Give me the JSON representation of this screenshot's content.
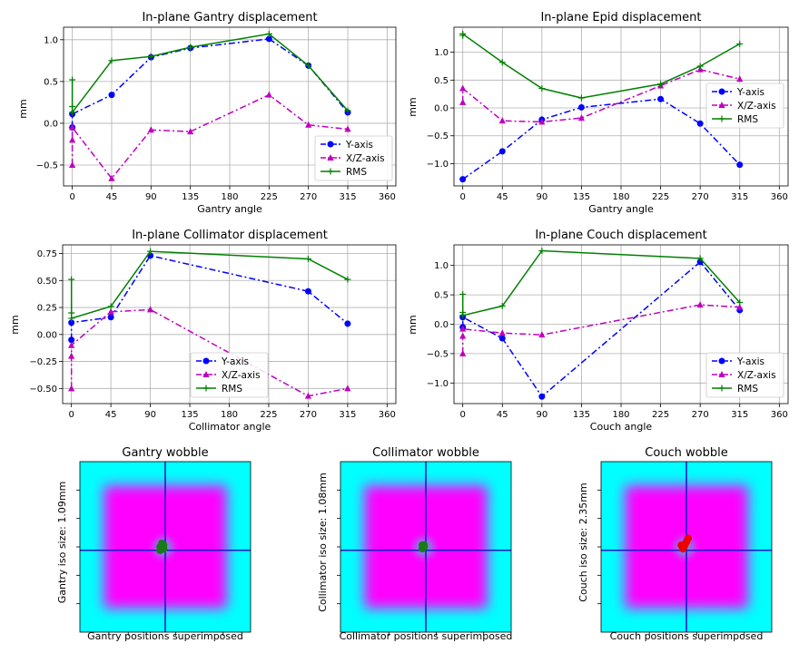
{
  "chart_data": [
    {
      "type": "line",
      "title": "In-plane Gantry displacement",
      "xlabel": "Gantry angle",
      "ylabel": "mm",
      "xlim": [
        -10,
        370
      ],
      "ylim": [
        -0.75,
        1.15
      ],
      "xticks": [
        0,
        45,
        90,
        135,
        180,
        225,
        270,
        315,
        360
      ],
      "yticks": [
        -0.5,
        0.0,
        0.5,
        1.0
      ],
      "ytick_labels": [
        "−0.5",
        "0.0",
        "0.5",
        "1.0"
      ],
      "grid": true,
      "legend_position": "lower-right",
      "series": [
        {
          "name": "Y-axis",
          "color": "#0000ff",
          "style": "dashdot",
          "marker": "circle",
          "x": [
            0,
            0,
            45,
            90,
            135,
            225,
            270,
            315
          ],
          "y": [
            -0.05,
            0.11,
            0.34,
            0.79,
            0.9,
            1.01,
            0.69,
            0.13
          ]
        },
        {
          "name": "X/Z-axis",
          "color": "#bf00bf",
          "style": "dashdot",
          "marker": "triangle",
          "x": [
            0,
            0,
            0,
            45,
            90,
            135,
            225,
            270,
            315
          ],
          "y": [
            -0.5,
            -0.2,
            -0.05,
            -0.66,
            -0.08,
            -0.1,
            0.34,
            -0.02,
            -0.07
          ]
        },
        {
          "name": "RMS",
          "color": "#008000",
          "style": "solid",
          "marker": "plus",
          "x": [
            0,
            0,
            0,
            45,
            90,
            135,
            225,
            270,
            315
          ],
          "y": [
            0.52,
            0.2,
            0.13,
            0.75,
            0.8,
            0.91,
            1.07,
            0.69,
            0.15
          ]
        }
      ]
    },
    {
      "type": "line",
      "title": "In-plane Epid displacement",
      "xlabel": "Gantry angle",
      "ylabel": "mm",
      "xlim": [
        -10,
        370
      ],
      "ylim": [
        -1.4,
        1.45
      ],
      "xticks": [
        0,
        45,
        90,
        135,
        180,
        225,
        270,
        315,
        360
      ],
      "yticks": [
        -1.0,
        -0.5,
        0.0,
        0.5,
        1.0
      ],
      "ytick_labels": [
        "−1.0",
        "−0.5",
        "0.0",
        "0.5",
        "1.0"
      ],
      "grid": true,
      "legend_position": "upper-right",
      "series": [
        {
          "name": "Y-axis",
          "color": "#0000ff",
          "style": "dashdot",
          "marker": "circle",
          "x": [
            0,
            45,
            90,
            135,
            225,
            270,
            315
          ],
          "y": [
            -1.28,
            -0.78,
            -0.21,
            0.01,
            0.16,
            -0.28,
            -1.02
          ]
        },
        {
          "name": "X/Z-axis",
          "color": "#bf00bf",
          "style": "dashdot",
          "marker": "triangle",
          "x": [
            0,
            0,
            45,
            90,
            135,
            225,
            270,
            315
          ],
          "y": [
            0.1,
            0.35,
            -0.23,
            -0.25,
            -0.18,
            0.4,
            0.69,
            0.52
          ]
        },
        {
          "name": "RMS",
          "color": "#008000",
          "style": "solid",
          "marker": "plus",
          "x": [
            0,
            0,
            45,
            90,
            135,
            225,
            270,
            315
          ],
          "y": [
            1.3,
            1.33,
            0.82,
            0.35,
            0.18,
            0.43,
            0.75,
            1.15
          ]
        }
      ]
    },
    {
      "type": "line",
      "title": "In-plane Collimator displacement",
      "xlabel": "Collimator angle",
      "ylabel": "mm",
      "xlim": [
        -10,
        370
      ],
      "ylim": [
        -0.64,
        0.83
      ],
      "xticks": [
        0,
        45,
        90,
        135,
        180,
        225,
        270,
        315,
        360
      ],
      "yticks": [
        -0.5,
        -0.25,
        0.0,
        0.25,
        0.5,
        0.75
      ],
      "ytick_labels": [
        "−0.50",
        "−0.25",
        "0.00",
        "0.25",
        "0.50",
        "0.75"
      ],
      "grid": true,
      "legend_position": "lower-center",
      "series": [
        {
          "name": "Y-axis",
          "color": "#0000ff",
          "style": "dashdot",
          "marker": "circle",
          "x": [
            0,
            0,
            45,
            90,
            270,
            315
          ],
          "y": [
            -0.05,
            0.11,
            0.16,
            0.73,
            0.4,
            0.1
          ]
        },
        {
          "name": "X/Z-axis",
          "color": "#bf00bf",
          "style": "dashdot",
          "marker": "triangle",
          "x": [
            0,
            0,
            0,
            45,
            90,
            270,
            315
          ],
          "y": [
            -0.5,
            -0.2,
            -0.1,
            0.21,
            0.23,
            -0.57,
            -0.5
          ]
        },
        {
          "name": "RMS",
          "color": "#008000",
          "style": "solid",
          "marker": "plus",
          "x": [
            0,
            0,
            0,
            45,
            90,
            270,
            315
          ],
          "y": [
            0.51,
            0.2,
            0.15,
            0.26,
            0.77,
            0.7,
            0.51
          ]
        }
      ]
    },
    {
      "type": "line",
      "title": "In-plane Couch displacement",
      "xlabel": "Couch angle",
      "ylabel": "mm",
      "xlim": [
        -10,
        370
      ],
      "ylim": [
        -1.35,
        1.35
      ],
      "xticks": [
        0,
        45,
        90,
        135,
        180,
        225,
        270,
        315,
        360
      ],
      "yticks": [
        -1.0,
        -0.5,
        0.0,
        0.5,
        1.0
      ],
      "ytick_labels": [
        "−1.0",
        "−0.5",
        "0.0",
        "0.5",
        "1.0"
      ],
      "grid": true,
      "legend_position": "lower-right",
      "series": [
        {
          "name": "Y-axis",
          "color": "#0000ff",
          "style": "dashdot",
          "marker": "circle",
          "x": [
            0,
            0,
            45,
            90,
            270,
            315
          ],
          "y": [
            -0.05,
            0.12,
            -0.24,
            -1.23,
            1.06,
            0.24
          ]
        },
        {
          "name": "X/Z-axis",
          "color": "#bf00bf",
          "style": "dashdot",
          "marker": "triangle",
          "x": [
            0,
            0,
            0,
            45,
            90,
            270,
            315
          ],
          "y": [
            -0.5,
            -0.2,
            -0.08,
            -0.15,
            -0.18,
            0.33,
            0.29
          ]
        },
        {
          "name": "RMS",
          "color": "#008000",
          "style": "solid",
          "marker": "plus",
          "x": [
            0,
            0,
            0,
            45,
            90,
            270,
            315
          ],
          "y": [
            0.51,
            0.2,
            0.15,
            0.31,
            1.25,
            1.12,
            0.37
          ]
        }
      ]
    },
    {
      "type": "heatmap",
      "title": "Gantry wobble",
      "xlabel": "Gantry positions superimposed",
      "ylabel": "Gantry iso size: 1.09mm",
      "crosshair": [
        0.5,
        0.52
      ],
      "spot_color": "#1a7a1a",
      "spots": [
        [
          0.47,
          0.5
        ],
        [
          0.48,
          0.48
        ],
        [
          0.49,
          0.51
        ],
        [
          0.47,
          0.52
        ],
        [
          0.49,
          0.49
        ],
        [
          0.48,
          0.51
        ]
      ]
    },
    {
      "type": "heatmap",
      "title": "Collimator wobble",
      "xlabel": "Collimator positions superimposed",
      "ylabel": "Collimator iso size: 1.08mm",
      "crosshair": [
        0.5,
        0.52
      ],
      "spot_color": "#1a7a1a",
      "spots": [
        [
          0.48,
          0.49
        ],
        [
          0.49,
          0.5
        ],
        [
          0.48,
          0.51
        ],
        [
          0.49,
          0.49
        ]
      ]
    },
    {
      "type": "heatmap",
      "title": "Couch wobble",
      "xlabel": "Couch positions superimposed",
      "ylabel": "Couch iso size: 2.35mm",
      "crosshair": [
        0.5,
        0.52
      ],
      "spot_color": "#ee0000",
      "spots": [
        [
          0.51,
          0.45
        ],
        [
          0.5,
          0.47
        ],
        [
          0.49,
          0.49
        ],
        [
          0.48,
          0.5
        ],
        [
          0.48,
          0.51
        ],
        [
          0.47,
          0.49
        ]
      ]
    }
  ]
}
